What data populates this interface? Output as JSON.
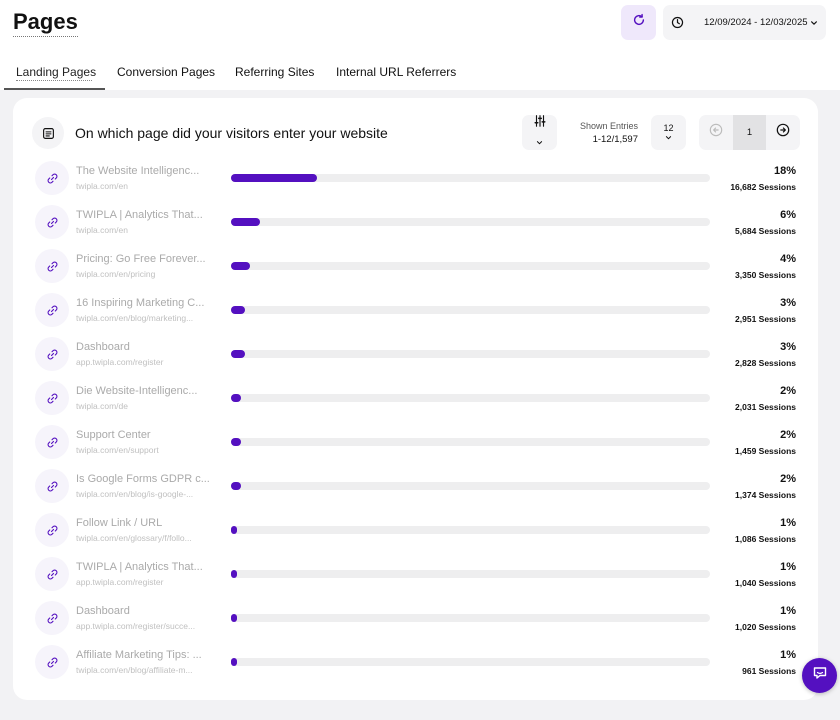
{
  "header": {
    "title": "Pages",
    "date_range": "12/09/2024 - 12/03/2025",
    "icons": {
      "refresh": "refresh-icon",
      "clock": "clock-icon",
      "chevron": "chevron-down-icon"
    }
  },
  "tabs": [
    {
      "label": "Landing Pages",
      "active": true
    },
    {
      "label": "Conversion Pages",
      "active": false
    },
    {
      "label": "Referring Sites",
      "active": false
    },
    {
      "label": "Internal URL Referrers",
      "active": false
    }
  ],
  "card": {
    "title": "On which page did your visitors enter your website",
    "shown_entries_label": "Shown Entries",
    "shown_entries_value": "1-12/1,597",
    "per_page": "12",
    "current_page": "1"
  },
  "rows": [
    {
      "title": "The Website Intelligenc...",
      "url": "twipla.com/en",
      "percent": "18%",
      "sessions": "16,682 Sessions",
      "share": 0.18
    },
    {
      "title": "TWIPLA | Analytics That...",
      "url": "twipla.com/en",
      "percent": "6%",
      "sessions": "5,684 Sessions",
      "share": 0.06
    },
    {
      "title": "Pricing: Go Free Forever...",
      "url": "twipla.com/en/pricing",
      "percent": "4%",
      "sessions": "3,350 Sessions",
      "share": 0.04
    },
    {
      "title": "16 Inspiring Marketing C...",
      "url": "twipla.com/en/blog/marketing...",
      "percent": "3%",
      "sessions": "2,951 Sessions",
      "share": 0.03
    },
    {
      "title": "Dashboard",
      "url": "app.twipla.com/register",
      "percent": "3%",
      "sessions": "2,828 Sessions",
      "share": 0.03
    },
    {
      "title": "Die Website-Intelligenc...",
      "url": "twipla.com/de",
      "percent": "2%",
      "sessions": "2,031 Sessions",
      "share": 0.02
    },
    {
      "title": "Support Center",
      "url": "twipla.com/en/support",
      "percent": "2%",
      "sessions": "1,459 Sessions",
      "share": 0.02
    },
    {
      "title": "Is Google Forms GDPR c...",
      "url": "twipla.com/en/blog/is-google-...",
      "percent": "2%",
      "sessions": "1,374 Sessions",
      "share": 0.02
    },
    {
      "title": "Follow Link / URL",
      "url": "twipla.com/en/glossary/f/follo...",
      "percent": "1%",
      "sessions": "1,086 Sessions",
      "share": 0.01
    },
    {
      "title": "TWIPLA | Analytics That...",
      "url": "app.twipla.com/register",
      "percent": "1%",
      "sessions": "1,040 Sessions",
      "share": 0.01
    },
    {
      "title": "Dashboard",
      "url": "app.twipla.com/register/succe...",
      "percent": "1%",
      "sessions": "1,020 Sessions",
      "share": 0.01
    },
    {
      "title": "Affiliate Marketing Tips: ...",
      "url": "twipla.com/en/blog/affiliate-m...",
      "percent": "1%",
      "sessions": "961 Sessions",
      "share": 0.01
    }
  ],
  "colors": {
    "accent": "#5410c0",
    "track": "#eeeeef",
    "accent_light": "#efe8fb"
  }
}
